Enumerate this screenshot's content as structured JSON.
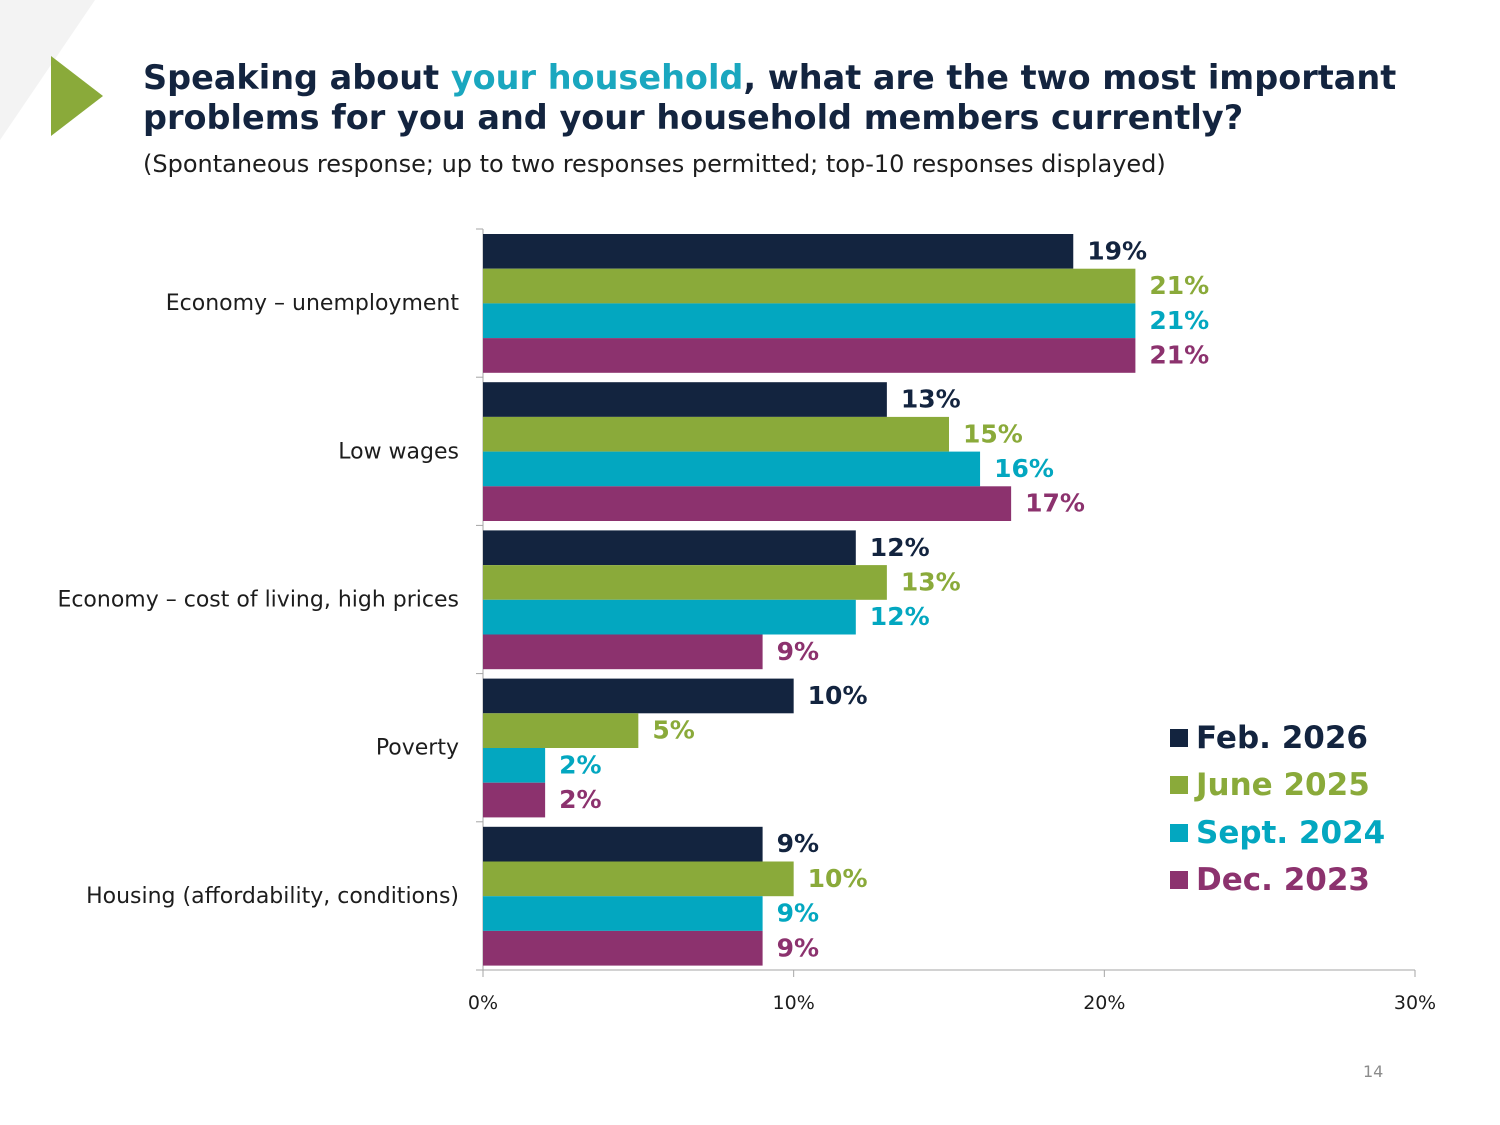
{
  "slide": {
    "title_part1": "Speaking about ",
    "title_highlight": "your household",
    "title_part2": ", what are the two most important problems for you and your household members currently?",
    "subtitle": "(Spontaneous response; up to two responses permitted; top-10 responses displayed)",
    "page_number": "14"
  },
  "colors": {
    "navy": "#13243f",
    "green": "#8aaa3a",
    "teal": "#03a7c0",
    "purple": "#8c326e"
  },
  "chart_data": {
    "type": "bar",
    "orientation": "horizontal",
    "title": "Speaking about your household, what are the two most important problems for you and your household members currently?",
    "categories": [
      "Economy – unemployment",
      "Low wages",
      "Economy – cost of living, high prices",
      "Poverty",
      "Housing (affordability, conditions)"
    ],
    "series": [
      {
        "name": "Feb. 2026",
        "color": "#13243f",
        "label_color": "#13243f",
        "values": [
          19,
          13,
          12,
          10,
          9
        ],
        "labels": [
          "19%",
          "13%",
          "12%",
          "10%",
          "9%"
        ]
      },
      {
        "name": "June 2025",
        "color": "#8aaa3a",
        "label_color": "#8aaa3a",
        "values": [
          21,
          15,
          13,
          5,
          10
        ],
        "labels": [
          "21%",
          "15%",
          "13%",
          "5%",
          "10%"
        ]
      },
      {
        "name": "Sept. 2024",
        "color": "#03a7c0",
        "label_color": "#03a7c0",
        "values": [
          21,
          16,
          12,
          2,
          9
        ],
        "labels": [
          "21%",
          "16%",
          "12%",
          "2%",
          "9%"
        ]
      },
      {
        "name": "Dec. 2023",
        "color": "#8c326e",
        "label_color": "#8c326e",
        "values": [
          21,
          17,
          9,
          2,
          9
        ],
        "labels": [
          "21%",
          "17%",
          "9%",
          "2%",
          "9%"
        ]
      }
    ],
    "xlim": [
      0,
      30
    ],
    "xticks": [
      0,
      10,
      20,
      30
    ],
    "xtick_labels": [
      "0%",
      "10%",
      "20%",
      "30%"
    ],
    "xlabel": "",
    "ylabel": "",
    "grid": false,
    "legend_position": "right"
  }
}
